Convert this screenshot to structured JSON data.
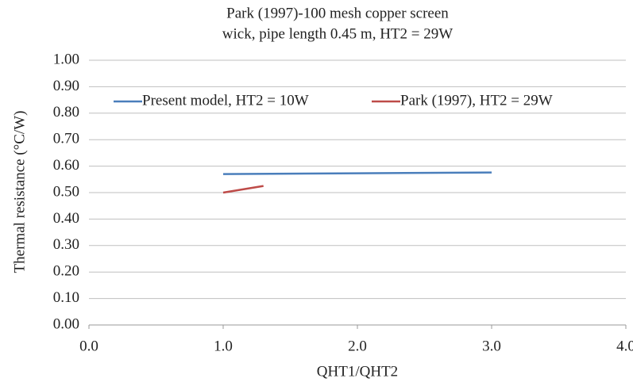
{
  "chart_data": {
    "type": "line",
    "title": [
      "Park (1997)-100 mesh copper screen",
      "wick, pipe length 0.45 m, HT2 = 29W"
    ],
    "x_label": "QHT1/QHT2",
    "y_label": "Thermal resistance (°C/W)",
    "series": [
      {
        "name": "Present model, HT2 = 10W",
        "color": "#4a7ebb",
        "x": [
          1.0,
          2.0,
          3.0
        ],
        "values": [
          0.57,
          0.573,
          0.576
        ]
      },
      {
        "name": "Park (1997), HT2 = 29W",
        "color": "#be4b48",
        "x": [
          1.0,
          1.3
        ],
        "values": [
          0.5,
          0.525
        ]
      }
    ],
    "xlim": [
      0,
      4
    ],
    "xticks": [
      {
        "value": 0,
        "label": "0.0"
      },
      {
        "value": 1,
        "label": "1.0"
      },
      {
        "value": 2,
        "label": "2.0"
      },
      {
        "value": 3,
        "label": "3.0"
      },
      {
        "value": 4,
        "label": "4.0"
      }
    ],
    "ylim": [
      0,
      1
    ],
    "yticks": [
      {
        "value": 0,
        "label": "0.00"
      },
      {
        "value": 0.1,
        "label": "0.10"
      },
      {
        "value": 0.2,
        "label": "0.20"
      },
      {
        "value": 0.3,
        "label": "0.30"
      },
      {
        "value": 0.4,
        "label": "0.40"
      },
      {
        "value": 0.5,
        "label": "0.50"
      },
      {
        "value": 0.6,
        "label": "0.60"
      },
      {
        "value": 0.7,
        "label": "0.70"
      },
      {
        "value": 0.8,
        "label": "0.80"
      },
      {
        "value": 0.9,
        "label": "0.90"
      },
      {
        "value": 1,
        "label": "1.00"
      }
    ],
    "grid": true,
    "legend": "top"
  }
}
